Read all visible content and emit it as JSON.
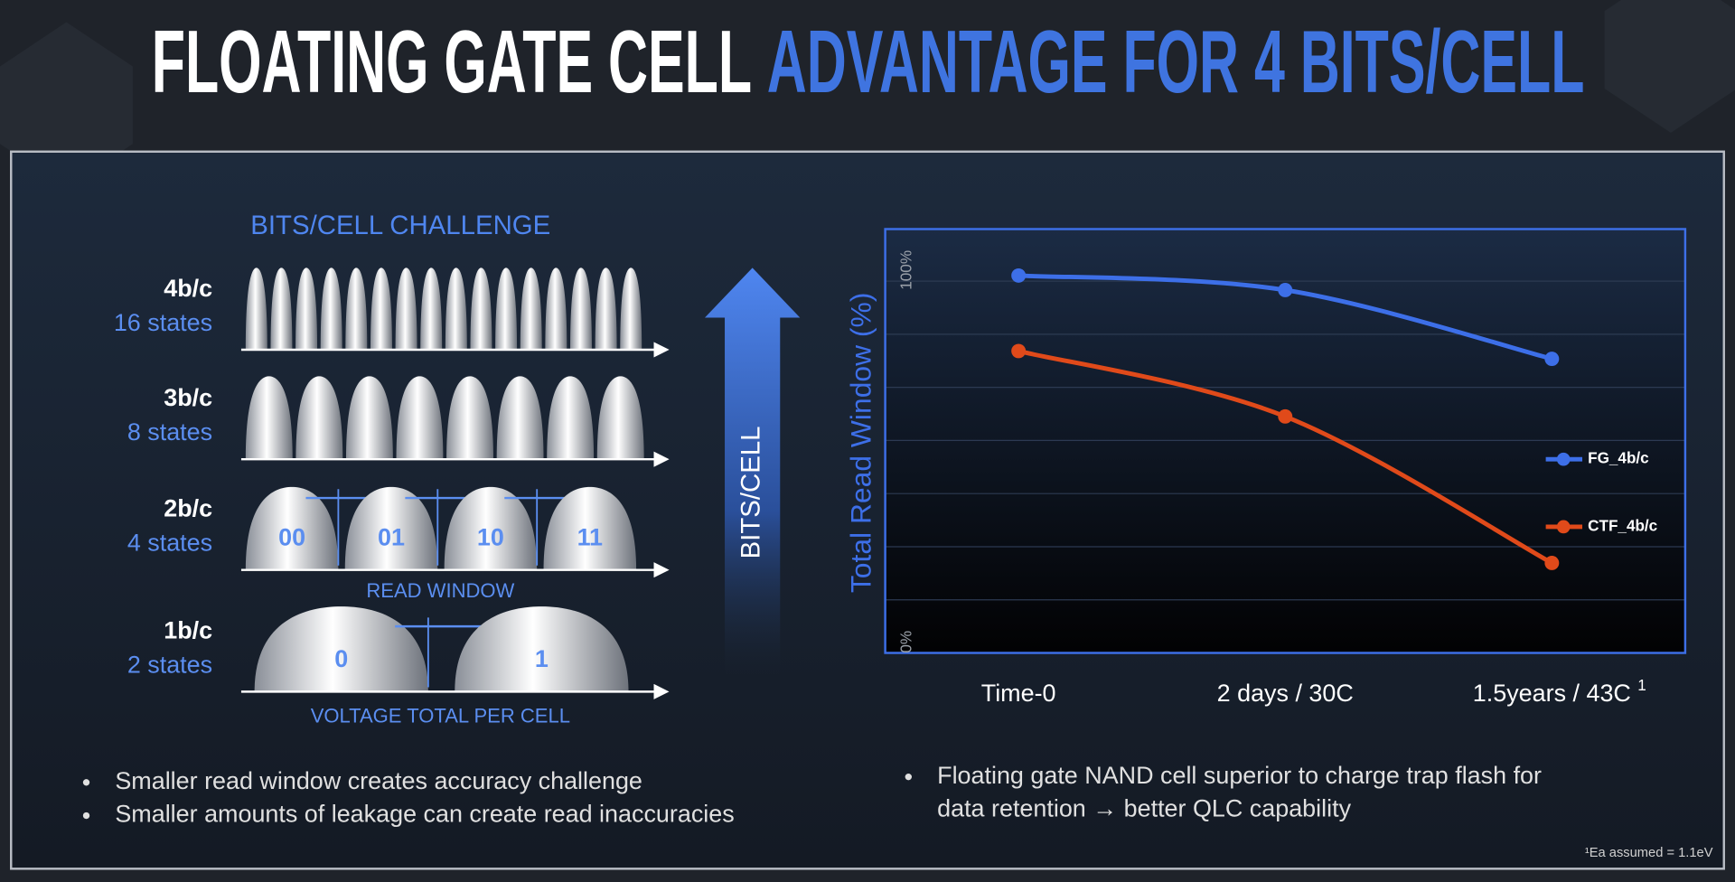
{
  "title": {
    "white": "FLOATING GATE CELL",
    "blue": "ADVANTAGE FOR 4 BITS/CELL"
  },
  "diagram": {
    "title": "BITS/CELL CHALLENGE",
    "rows": [
      {
        "label": "4b/c",
        "states": "16 states",
        "hump_labels": []
      },
      {
        "label": "3b/c",
        "states": "8 states",
        "hump_labels": []
      },
      {
        "label": "2b/c",
        "states": "4 states",
        "hump_labels": [
          "00",
          "01",
          "10",
          "11"
        ]
      },
      {
        "label": "1b/c",
        "states": "2 states",
        "hump_labels": [
          "0",
          "1"
        ]
      }
    ],
    "read_window_label": "READ WINDOW",
    "voltage_label": "VOLTAGE TOTAL PER CELL",
    "arrow_label": "BITS/CELL"
  },
  "left_bullets": [
    "Smaller read window creates accuracy challenge",
    "Smaller amounts of leakage can create read inaccuracies"
  ],
  "right_bullet_lines": [
    "Floating gate NAND cell superior to charge trap flash for",
    "data retention → better QLC capability"
  ],
  "chart_data": {
    "type": "line",
    "y_label": "Total Read Window (%)",
    "categories": [
      "Time-0",
      "2 days / 30C",
      "1.5years / 43C"
    ],
    "category_note": "1",
    "series": [
      {
        "name": "FG_4b/c",
        "color": "#3d6fe8",
        "values": [
          101.5,
          97.6,
          79.1
        ]
      },
      {
        "name": "CTF_4b/c",
        "color": "#e04a1a",
        "values": [
          81.2,
          63.6,
          24.2
        ]
      }
    ],
    "ylim": [
      0,
      114
    ],
    "yticks": [
      {
        "value": 0,
        "label": "0%"
      },
      {
        "value": 100,
        "label": "100%"
      }
    ],
    "grid": true,
    "legend": "right"
  },
  "footnote": "¹Ea assumed = 1.1eV"
}
